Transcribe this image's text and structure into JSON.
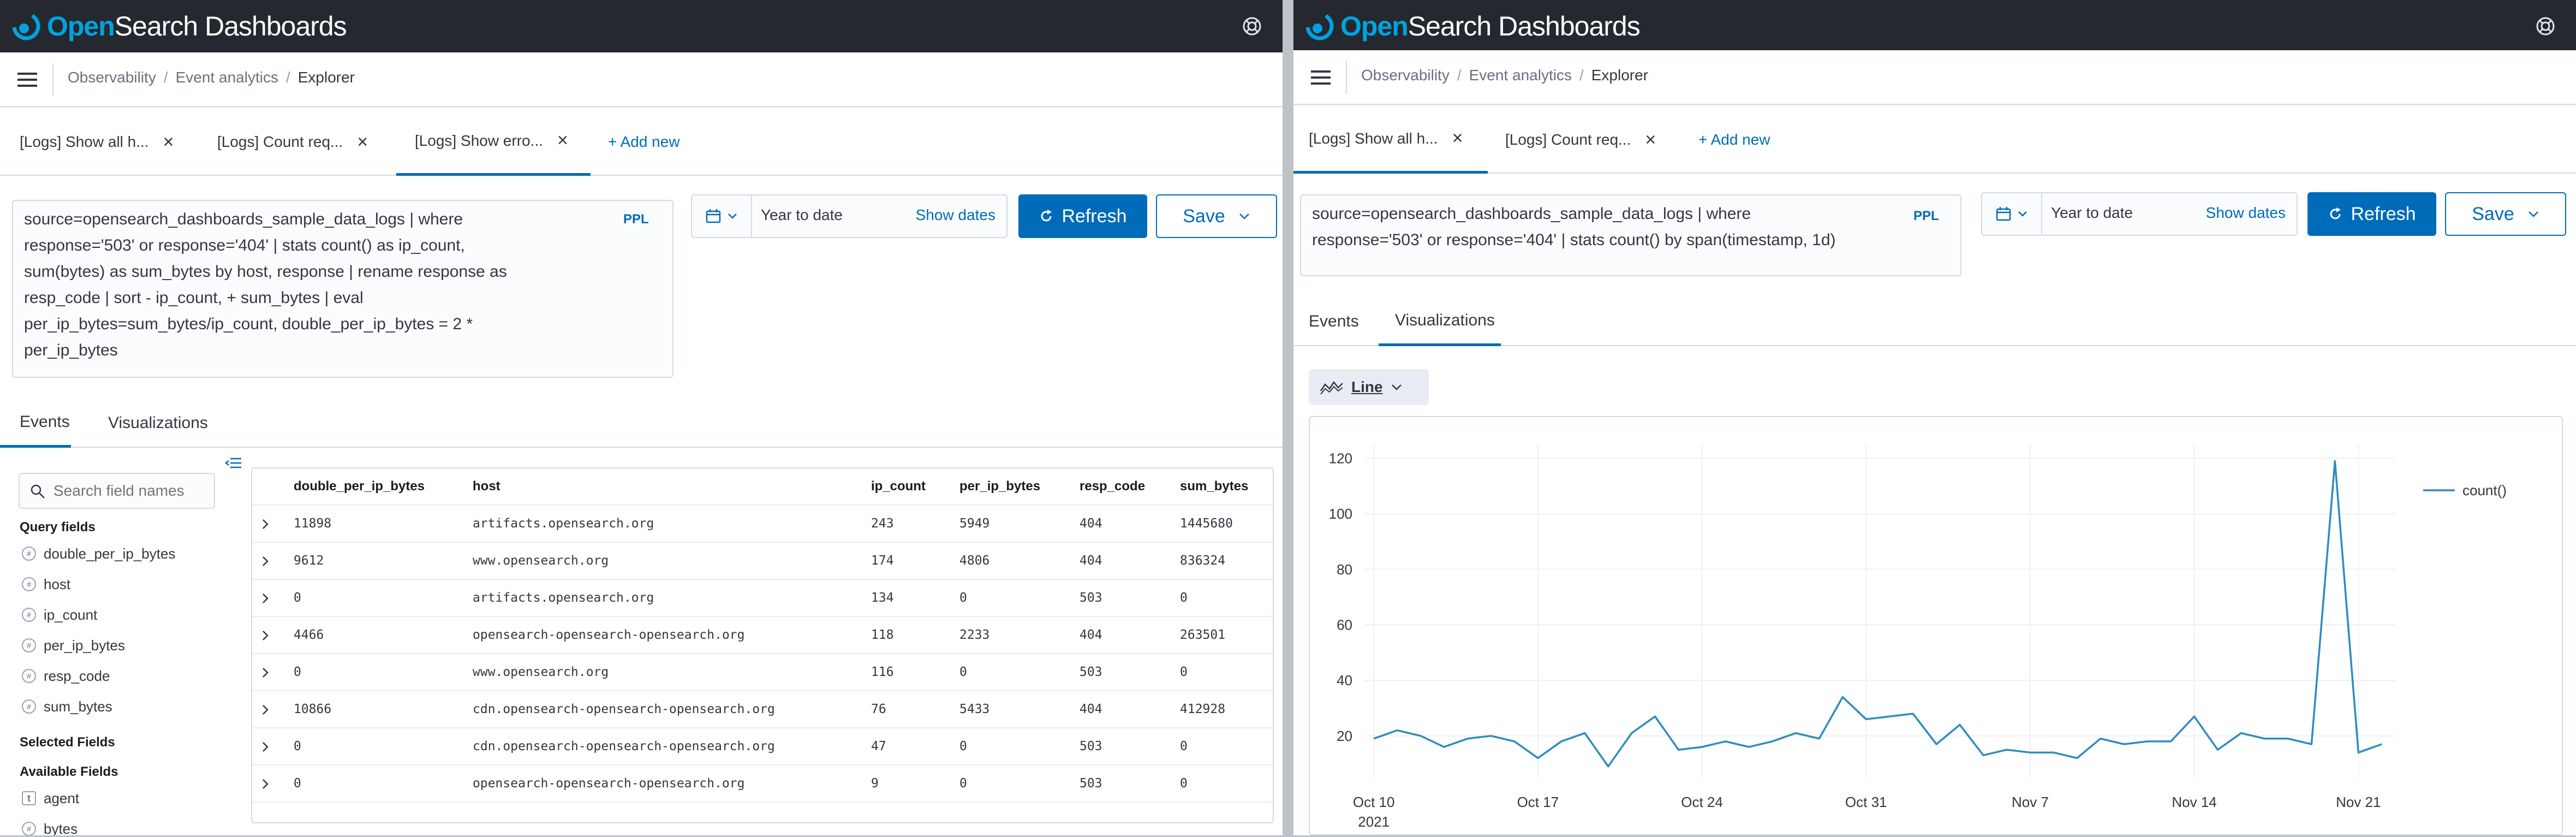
{
  "app": {
    "brand_open": "Open",
    "brand_rest": "Search Dashboards"
  },
  "left": {
    "breadcrumbs": [
      "Observability",
      "Event analytics",
      "Explorer"
    ],
    "tabs": [
      {
        "label": "[Logs] Show all h...",
        "active": false
      },
      {
        "label": "[Logs] Count req...",
        "active": false
      },
      {
        "label": "[Logs] Show erro...",
        "active": true
      }
    ],
    "add_new": "+ Add new",
    "query_lines": [
      "source=opensearch_dashboards_sample_data_logs | where",
      "response='503' or response='404' |      stats count() as ip_count,",
      "sum(bytes)      as sum_bytes by host, response |      rename response as",
      "resp_code |      sort - ip_count, + sum_bytes |      eval",
      "per_ip_bytes=sum_bytes/ip_count,      double_per_ip_bytes = 2 *",
      "per_ip_bytes"
    ],
    "ppl": "PPL",
    "date_range": "Year to date",
    "show_dates": "Show dates",
    "refresh": "Refresh",
    "save": "Save",
    "view_tabs": [
      {
        "label": "Events",
        "active": true
      },
      {
        "label": "Visualizations",
        "active": false
      }
    ],
    "sidebar": {
      "search_placeholder": "Search field names",
      "query_fields_title": "Query fields",
      "query_fields": [
        "double_per_ip_bytes",
        "host",
        "ip_count",
        "per_ip_bytes",
        "resp_code",
        "sum_bytes"
      ],
      "selected_fields_title": "Selected Fields",
      "available_fields_title": "Available Fields",
      "available_fields": [
        {
          "name": "agent",
          "type": "t"
        },
        {
          "name": "bytes",
          "type": "#"
        }
      ]
    },
    "table": {
      "columns": [
        "double_per_ip_bytes",
        "host",
        "ip_count",
        "per_ip_bytes",
        "resp_code",
        "sum_bytes"
      ],
      "rows": [
        [
          "11898",
          "artifacts.opensearch.org",
          "243",
          "5949",
          "404",
          "1445680"
        ],
        [
          "9612",
          "www.opensearch.org",
          "174",
          "4806",
          "404",
          "836324"
        ],
        [
          "0",
          "artifacts.opensearch.org",
          "134",
          "0",
          "503",
          "0"
        ],
        [
          "4466",
          "opensearch-opensearch-opensearch.org",
          "118",
          "2233",
          "404",
          "263501"
        ],
        [
          "0",
          "www.opensearch.org",
          "116",
          "0",
          "503",
          "0"
        ],
        [
          "10866",
          "cdn.opensearch-opensearch-opensearch.org",
          "76",
          "5433",
          "404",
          "412928"
        ],
        [
          "0",
          "cdn.opensearch-opensearch-opensearch.org",
          "47",
          "0",
          "503",
          "0"
        ],
        [
          "0",
          "opensearch-opensearch-opensearch.org",
          "9",
          "0",
          "503",
          "0"
        ]
      ]
    }
  },
  "right": {
    "breadcrumbs": [
      "Observability",
      "Event analytics",
      "Explorer"
    ],
    "tabs": [
      {
        "label": "[Logs] Show all h...",
        "active": true
      },
      {
        "label": "[Logs] Count req...",
        "active": false
      }
    ],
    "add_new": "+ Add new",
    "query_lines": [
      "source=opensearch_dashboards_sample_data_logs |  where",
      "response='503' or response='404' |  stats count() by span(timestamp, 1d)"
    ],
    "ppl": "PPL",
    "date_range": "Year to date",
    "show_dates": "Show dates",
    "refresh": "Refresh",
    "save": "Save",
    "view_tabs": [
      {
        "label": "Events",
        "active": false
      },
      {
        "label": "Visualizations",
        "active": true
      }
    ],
    "viz_type": "Line"
  },
  "chart_data": {
    "type": "line",
    "x_tick_labels": [
      "Oct 10",
      "Oct 17",
      "Oct 24",
      "Oct 31",
      "Nov 7",
      "Nov 14",
      "Nov 21"
    ],
    "x_first_tick_year": "2021",
    "y_ticks": [
      20,
      40,
      60,
      80,
      100,
      120
    ],
    "ylim": [
      5,
      125
    ],
    "legend_position": "top-right",
    "grid": true,
    "colors": {
      "line": "#2f8cbf"
    },
    "series": [
      {
        "name": "count()",
        "x": [
          "2021-10-10",
          "2021-10-11",
          "2021-10-12",
          "2021-10-13",
          "2021-10-14",
          "2021-10-15",
          "2021-10-16",
          "2021-10-17",
          "2021-10-18",
          "2021-10-19",
          "2021-10-20",
          "2021-10-21",
          "2021-10-22",
          "2021-10-23",
          "2021-10-24",
          "2021-10-25",
          "2021-10-26",
          "2021-10-27",
          "2021-10-28",
          "2021-10-29",
          "2021-10-30",
          "2021-10-31",
          "2021-11-01",
          "2021-11-02",
          "2021-11-03",
          "2021-11-04",
          "2021-11-05",
          "2021-11-06",
          "2021-11-07",
          "2021-11-08",
          "2021-11-09",
          "2021-11-10",
          "2021-11-11",
          "2021-11-12",
          "2021-11-13",
          "2021-11-14",
          "2021-11-15",
          "2021-11-16",
          "2021-11-17",
          "2021-11-18",
          "2021-11-19",
          "2021-11-20",
          "2021-11-21",
          "2021-11-22"
        ],
        "values": [
          19,
          22,
          20,
          16,
          19,
          20,
          18,
          12,
          18,
          21,
          9,
          21,
          27,
          15,
          16,
          18,
          16,
          18,
          21,
          19,
          34,
          26,
          27,
          28,
          17,
          24,
          13,
          15,
          14,
          14,
          12,
          19,
          17,
          18,
          18,
          27,
          15,
          21,
          19,
          19,
          17,
          119,
          14,
          17
        ]
      }
    ]
  }
}
